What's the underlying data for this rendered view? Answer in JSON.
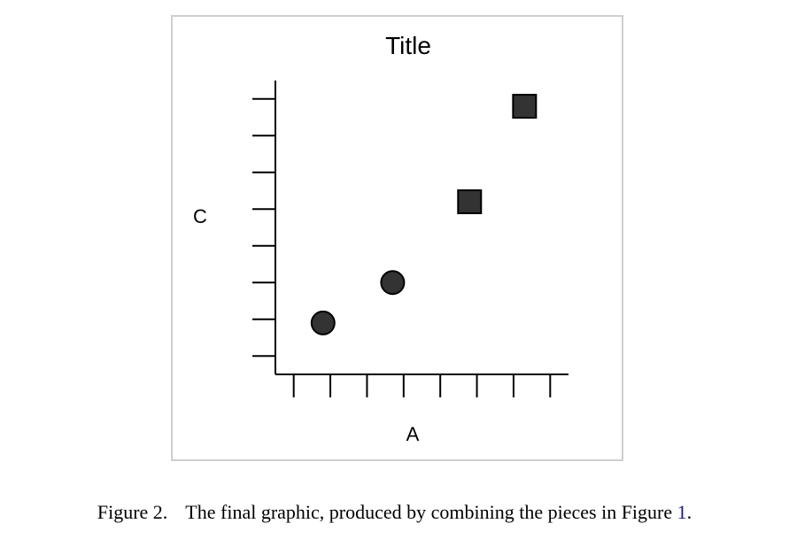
{
  "chart_data": {
    "type": "scatter",
    "title": "Title",
    "xlabel": "A",
    "ylabel": "C",
    "xlim": [
      0,
      8
    ],
    "ylim": [
      0,
      8
    ],
    "x_ticks": [
      0.5,
      1.5,
      2.5,
      3.5,
      4.5,
      5.5,
      6.5,
      7.5
    ],
    "y_ticks": [
      0.5,
      1.5,
      2.5,
      3.5,
      4.5,
      5.5,
      6.5,
      7.5
    ],
    "tick_labels_shown": false,
    "grid": false,
    "series": [
      {
        "marker": "circle",
        "color": "#333333",
        "points": [
          {
            "x": 1.3,
            "y": 1.4
          },
          {
            "x": 3.2,
            "y": 2.5
          }
        ]
      },
      {
        "marker": "square",
        "color": "#333333",
        "points": [
          {
            "x": 5.3,
            "y": 4.7
          },
          {
            "x": 6.8,
            "y": 7.3
          }
        ]
      }
    ]
  },
  "caption": {
    "label": "Figure 2.",
    "text": "The final graphic, produced by combining the pieces in Figure ",
    "ref": "1",
    "end": "."
  }
}
